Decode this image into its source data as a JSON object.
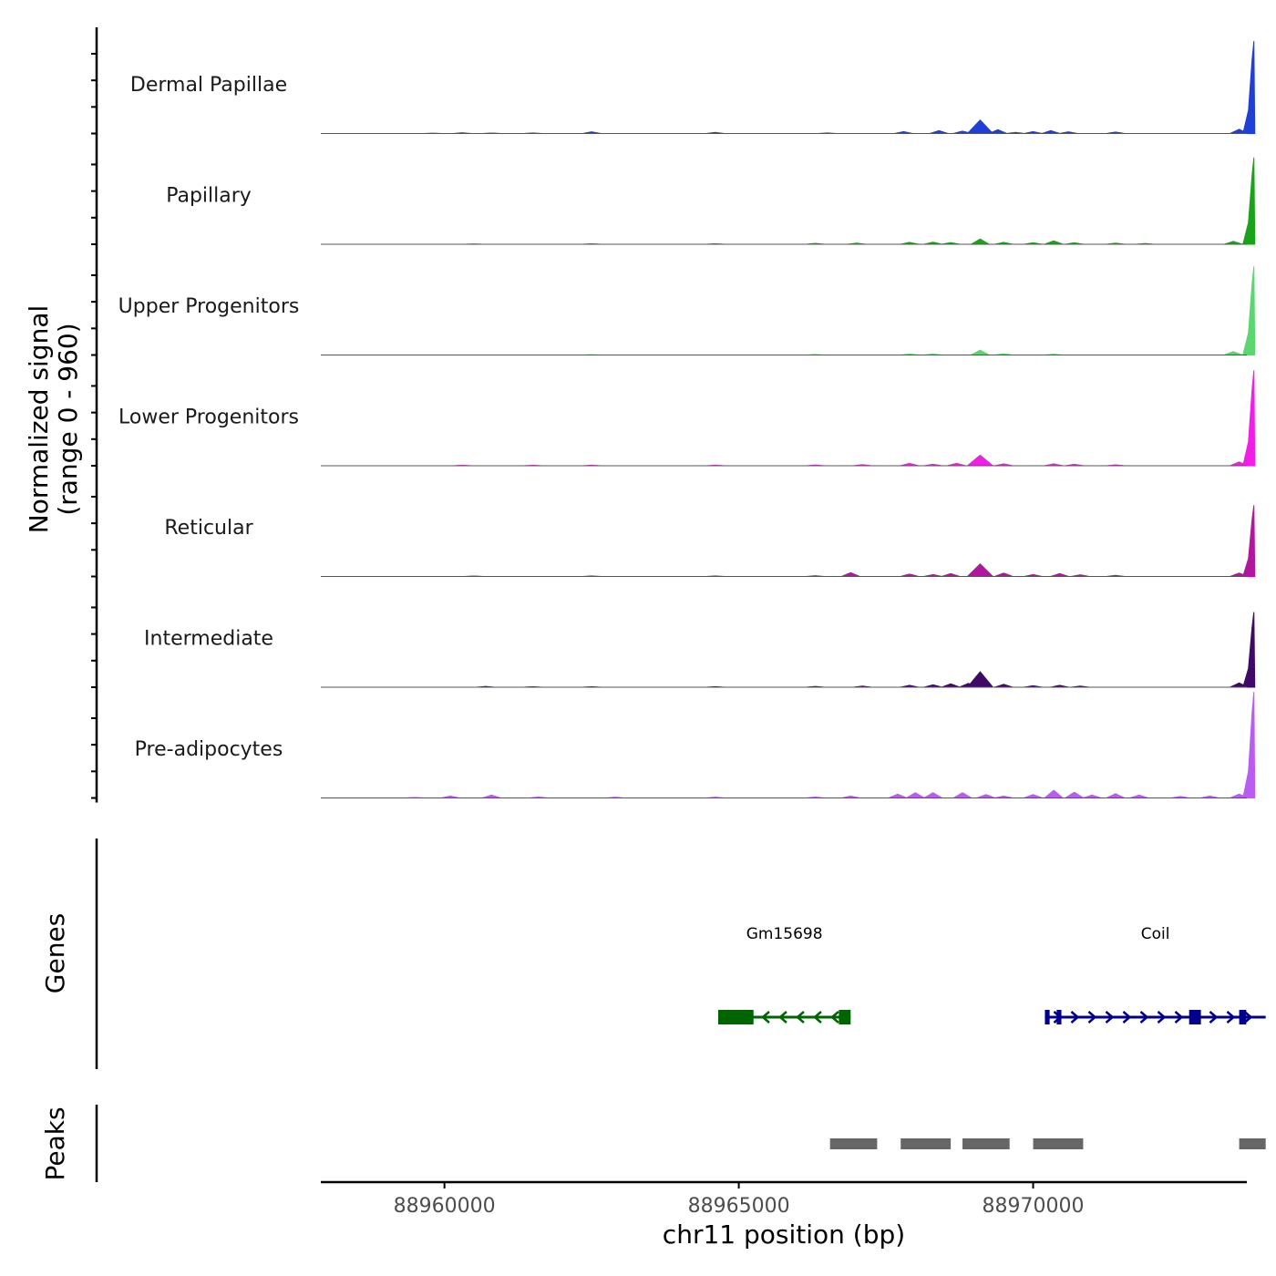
{
  "chart_data": {
    "type": "area",
    "title": "",
    "ylabel_line1": "Normalized signal",
    "ylabel_line2": "(range 0 - 960)",
    "ylim": [
      0,
      960
    ],
    "xlabel": "chr11 position (bp)",
    "xlim": [
      88957900,
      88973630
    ],
    "xticks": [
      88960000,
      88965000,
      88970000
    ],
    "xtick_labels": [
      "88960000",
      "88965000",
      "88970000"
    ],
    "tracks": [
      {
        "name": "Dermal Papillae",
        "color": "#1f3fd6",
        "points": [
          [
            88959800,
            4
          ],
          [
            88960300,
            8
          ],
          [
            88960800,
            5
          ],
          [
            88961500,
            6
          ],
          [
            88962500,
            18
          ],
          [
            88964600,
            12
          ],
          [
            88966500,
            6
          ],
          [
            88967800,
            20
          ],
          [
            88968400,
            30
          ],
          [
            88968800,
            25
          ],
          [
            88969100,
            140
          ],
          [
            88969400,
            40
          ],
          [
            88969700,
            12
          ],
          [
            88970000,
            20
          ],
          [
            88970300,
            30
          ],
          [
            88970600,
            18
          ],
          [
            88971400,
            15
          ],
          [
            88973500,
            45
          ],
          [
            88973750,
            960
          ]
        ]
      },
      {
        "name": "Papillary",
        "color": "#1aa31a",
        "points": [
          [
            88960500,
            4
          ],
          [
            88962500,
            5
          ],
          [
            88964600,
            6
          ],
          [
            88966300,
            10
          ],
          [
            88967000,
            12
          ],
          [
            88967900,
            20
          ],
          [
            88968300,
            22
          ],
          [
            88968600,
            18
          ],
          [
            88969100,
            55
          ],
          [
            88969500,
            20
          ],
          [
            88970000,
            15
          ],
          [
            88970350,
            35
          ],
          [
            88970700,
            15
          ],
          [
            88971400,
            12
          ],
          [
            88971900,
            8
          ],
          [
            88973400,
            30
          ],
          [
            88973750,
            900
          ]
        ]
      },
      {
        "name": "Upper Progenitors",
        "color": "#5cd66f",
        "points": [
          [
            88962500,
            3
          ],
          [
            88966300,
            5
          ],
          [
            88967900,
            10
          ],
          [
            88968300,
            10
          ],
          [
            88969100,
            50
          ],
          [
            88969500,
            12
          ],
          [
            88970350,
            8
          ],
          [
            88973400,
            35
          ],
          [
            88973750,
            920
          ]
        ]
      },
      {
        "name": "Lower Progenitors",
        "color": "#f01ee6",
        "points": [
          [
            88960300,
            5
          ],
          [
            88961500,
            5
          ],
          [
            88962500,
            6
          ],
          [
            88964600,
            6
          ],
          [
            88966300,
            8
          ],
          [
            88967100,
            12
          ],
          [
            88967900,
            25
          ],
          [
            88968300,
            15
          ],
          [
            88968700,
            25
          ],
          [
            88969100,
            110
          ],
          [
            88969500,
            20
          ],
          [
            88970350,
            20
          ],
          [
            88970700,
            15
          ],
          [
            88971400,
            10
          ],
          [
            88973500,
            40
          ],
          [
            88973750,
            990
          ]
        ]
      },
      {
        "name": "Reticular",
        "color": "#b3169e",
        "points": [
          [
            88960500,
            5
          ],
          [
            88962500,
            6
          ],
          [
            88964600,
            6
          ],
          [
            88966300,
            8
          ],
          [
            88966900,
            40
          ],
          [
            88967900,
            25
          ],
          [
            88968300,
            20
          ],
          [
            88968600,
            30
          ],
          [
            88969100,
            130
          ],
          [
            88969500,
            35
          ],
          [
            88970000,
            20
          ],
          [
            88970450,
            30
          ],
          [
            88970800,
            18
          ],
          [
            88971400,
            12
          ],
          [
            88973500,
            35
          ],
          [
            88973750,
            740
          ]
        ]
      },
      {
        "name": "Intermediate",
        "color": "#3e0a66",
        "points": [
          [
            88960700,
            8
          ],
          [
            88961500,
            5
          ],
          [
            88962500,
            5
          ],
          [
            88964600,
            6
          ],
          [
            88966300,
            8
          ],
          [
            88967100,
            12
          ],
          [
            88967900,
            20
          ],
          [
            88968300,
            25
          ],
          [
            88968600,
            35
          ],
          [
            88968900,
            40
          ],
          [
            88969100,
            160
          ],
          [
            88969500,
            30
          ],
          [
            88970000,
            15
          ],
          [
            88970450,
            20
          ],
          [
            88970800,
            12
          ],
          [
            88973500,
            45
          ],
          [
            88973750,
            780
          ]
        ]
      },
      {
        "name": "Pre-adipocytes",
        "color": "#b95cf0",
        "points": [
          [
            88959500,
            5
          ],
          [
            88960100,
            20
          ],
          [
            88960800,
            30
          ],
          [
            88961600,
            10
          ],
          [
            88962900,
            8
          ],
          [
            88964600,
            8
          ],
          [
            88966300,
            10
          ],
          [
            88966900,
            20
          ],
          [
            88967700,
            40
          ],
          [
            88968000,
            55
          ],
          [
            88968300,
            55
          ],
          [
            88968800,
            55
          ],
          [
            88969200,
            35
          ],
          [
            88969500,
            20
          ],
          [
            88970000,
            35
          ],
          [
            88970350,
            80
          ],
          [
            88970700,
            60
          ],
          [
            88971000,
            30
          ],
          [
            88971400,
            45
          ],
          [
            88971800,
            30
          ],
          [
            88972500,
            15
          ],
          [
            88973000,
            20
          ],
          [
            88973500,
            40
          ],
          [
            88973750,
            1100
          ]
        ]
      }
    ],
    "genes_label": "Genes",
    "genes": [
      {
        "name": "Gm15698",
        "strand": "-",
        "start": 88964650,
        "end": 88966900,
        "color": "#006400",
        "exons": [
          [
            88964650,
            88965250
          ],
          [
            88966700,
            88966900
          ]
        ]
      },
      {
        "name": "Coil",
        "strand": "+",
        "start": 88970200,
        "end": 88973950,
        "color": "#00008b",
        "exons": [
          [
            88970200,
            88970280
          ],
          [
            88970400,
            88970480
          ],
          [
            88972650,
            88972850
          ],
          [
            88973500,
            88973620
          ]
        ]
      }
    ],
    "peaks_label": "Peaks",
    "peaks": [
      [
        88966550,
        88967350
      ],
      [
        88967750,
        88968600
      ],
      [
        88968800,
        88969600
      ],
      [
        88970000,
        88970850
      ],
      [
        88973500,
        88973950
      ]
    ]
  }
}
